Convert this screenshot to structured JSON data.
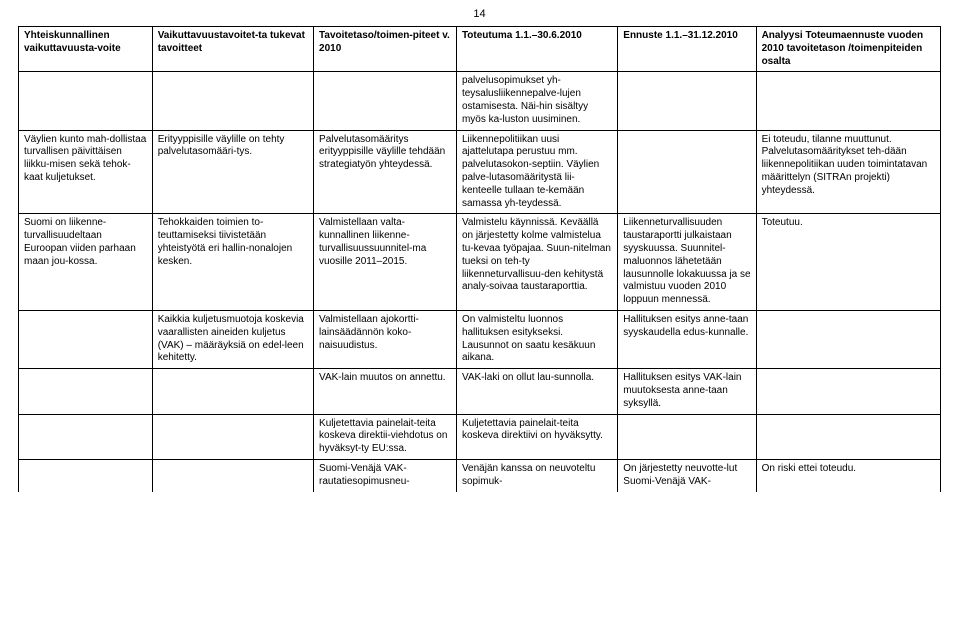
{
  "page_number": "14",
  "columns": {
    "c1": "Yhteiskunnallinen vaikuttavuusta-voite",
    "c2": "Vaikuttavuustavoitet-ta tukevat tavoitteet",
    "c3": "Tavoitetaso/toimen-piteet v. 2010",
    "c4": "Toteutuma 1.1.–30.6.2010",
    "c5": "Ennuste 1.1.–31.12.2010",
    "c6": "Analyysi Toteumaennuste vuoden 2010 tavoitetason /toimenpiteiden osalta"
  },
  "rows": [
    {
      "c1": "",
      "c2": "",
      "c3": "",
      "c4": "palvelusopimukset yh-teysalusliikennepalve-lujen ostamisesta. Näi-hin sisältyy myös ka-luston uusiminen.",
      "c5": "",
      "c6": ""
    },
    {
      "c1": "Väylien kunto mah-dollistaa turvallisen päivittäisen liikku-misen sekä tehok-kaat kuljetukset.",
      "c2": "Erityyppisille väylille on tehty palvelutasomääri-tys.",
      "c3": "Palvelutasomääritys erityyppisille väylille tehdään strategiatyön yhteydessä.",
      "c4": "Liikennepolitiikan uusi ajattelutapa perustuu mm. palvelutasokon-septiin. Väylien palve-lutasomääritystä lii-kenteelle tullaan te-kemään samassa yh-teydessä.",
      "c5": "",
      "c6": "Ei toteudu, tilanne muuttunut. Palvelutasomääritykset teh-dään liikennepolitiikan uuden toimintatavan määrittelyn (SITRAn projekti) yhteydessä."
    },
    {
      "c1": "Suomi on liikenne-turvallisuudeltaan Euroopan viiden parhaan maan jou-kossa.",
      "c2": "Tehokkaiden toimien to-teuttamiseksi tiivistetään yhteistyötä eri hallin-nonalojen kesken.",
      "c3": "Valmistellaan valta-kunnallinen liikenne-turvallisuussuunnitel-ma vuosille 2011–2015.",
      "c4": "Valmistelu käynnissä. Keväällä on järjestetty kolme valmistelua tu-kevaa työpajaa. Suun-nitelman tueksi on teh-ty liikenneturvallisuu-den kehitystä analy-soivaa taustaraporttia.",
      "c5": "Liikenneturvallisuuden taustaraportti julkaistaan syyskuussa. Suunnitel-maluonnos lähetetään lausunnolle lokakuussa ja se valmistuu vuoden 2010 loppuun mennessä.",
      "c6": "Toteutuu."
    },
    {
      "c1": "",
      "c2": "Kaikkia kuljetusmuotoja koskevia vaarallisten aineiden kuljetus (VAK) – määräyksiä on edel-leen kehitetty.",
      "c3": "Valmistellaan ajokortti-lainsäädännön koko-naisuudistus.",
      "c4": "On valmisteltu luonnos hallituksen esitykseksi. Lausunnot on saatu kesäkuun aikana.",
      "c5": "Hallituksen esitys anne-taan syyskaudella edus-kunnalle.",
      "c6": ""
    },
    {
      "c1": "",
      "c2": "",
      "c3": "VAK-lain muutos on annettu.",
      "c4": "VAK-laki on ollut lau-sunnolla.",
      "c5": "Hallituksen esitys VAK-lain muutoksesta anne-taan syksyllä.",
      "c6": ""
    },
    {
      "c1": "",
      "c2": "",
      "c3": "Kuljetettavia painelait-teita koskeva direktii-viehdotus on hyväksyt-ty EU:ssa.",
      "c4": "Kuljetettavia painelait-teita koskeva direktiivi on hyväksytty.",
      "c5": "",
      "c6": ""
    },
    {
      "c1": "",
      "c2": "",
      "c3": "Suomi-Venäjä VAK-rautatiesopimusneu-",
      "c4": "Venäjän kanssa on neuvoteltu sopimuk-",
      "c5": "On järjestetty neuvotte-lut Suomi-Venäjä VAK-",
      "c6": "On riski ettei toteudu."
    }
  ],
  "style": {
    "font_family": "Verdana",
    "font_size_pt": 8,
    "border_color": "#000000",
    "background": "#ffffff",
    "text_color": "#000000"
  }
}
